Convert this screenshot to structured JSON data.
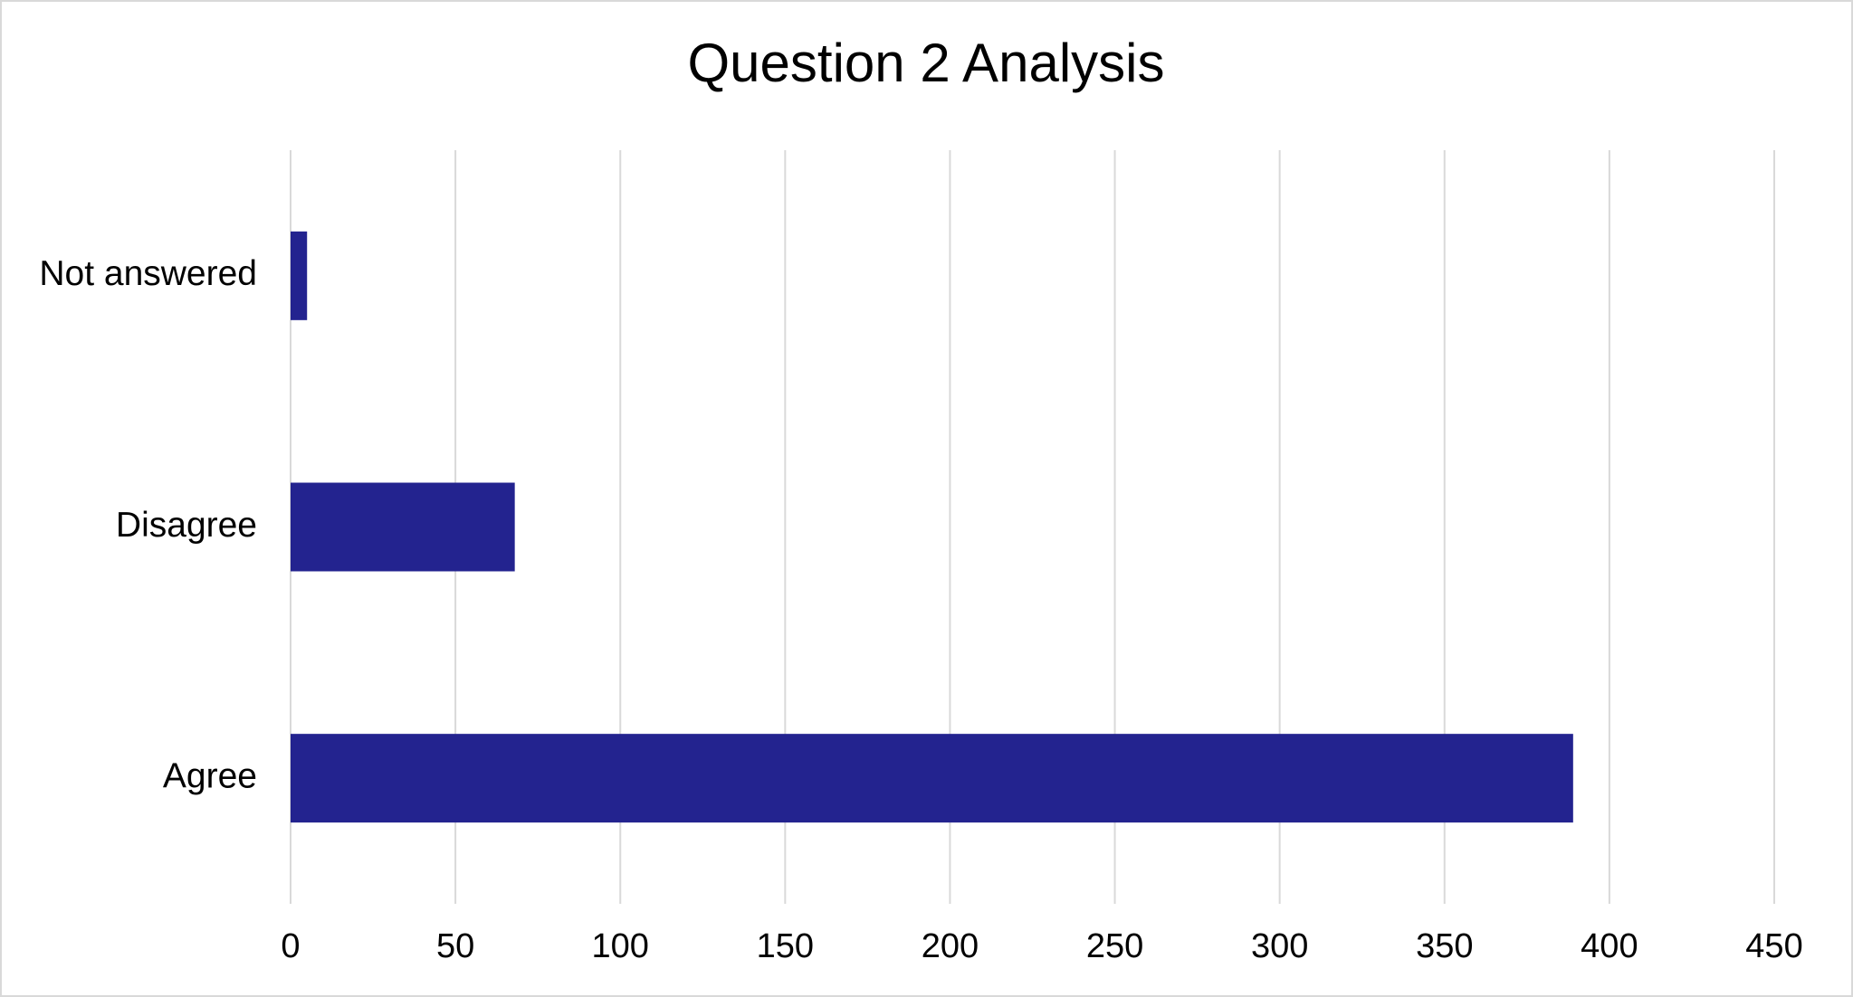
{
  "chart_data": {
    "type": "bar",
    "orientation": "horizontal",
    "title": "Question 2 Analysis",
    "categories": [
      "Not answered",
      "Disagree",
      "Agree"
    ],
    "values": [
      5,
      68,
      389
    ],
    "color": "#23238f",
    "xlim": [
      0,
      450
    ],
    "xticks": [
      0,
      50,
      100,
      150,
      200,
      250,
      300,
      350,
      400,
      450
    ],
    "grid": true
  }
}
